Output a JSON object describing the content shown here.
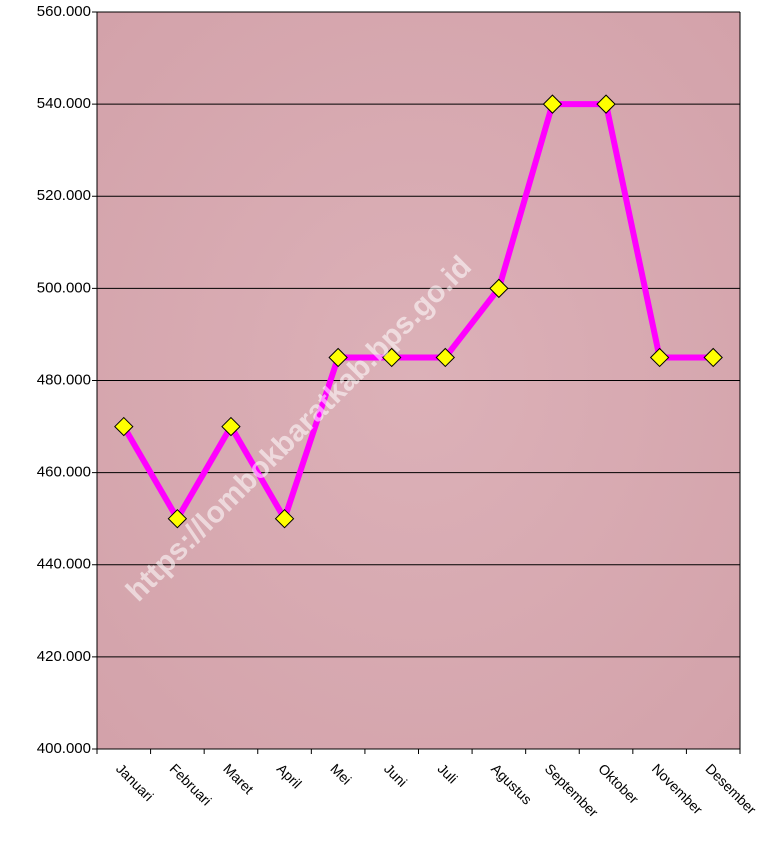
{
  "chart_data": {
    "type": "line",
    "categories": [
      "Januari",
      "Februari",
      "Maret",
      "April",
      "Mei",
      "Juni",
      "Juli",
      "Agustus",
      "September",
      "Oktober",
      "November",
      "Desember"
    ],
    "series": [
      {
        "color": "#ff00ff",
        "values": [
          470000,
          450000,
          470000,
          450000,
          485000,
          485000,
          485000,
          500000,
          540000,
          540000,
          485000,
          485000
        ]
      }
    ],
    "ylim": [
      400000,
      560000
    ],
    "yticks": [
      {
        "value": 400000,
        "label": "400.000"
      },
      {
        "value": 420000,
        "label": "420.000"
      },
      {
        "value": 440000,
        "label": "440.000"
      },
      {
        "value": 460000,
        "label": "460.000"
      },
      {
        "value": 480000,
        "label": "480.000"
      },
      {
        "value": 500000,
        "label": "500.000"
      },
      {
        "value": 520000,
        "label": "520.000"
      },
      {
        "value": 540000,
        "label": "540.000"
      },
      {
        "value": 560000,
        "label": "560.000"
      }
    ],
    "grid": true,
    "watermark": "https://lombokbaratkab.bps.go.id"
  }
}
